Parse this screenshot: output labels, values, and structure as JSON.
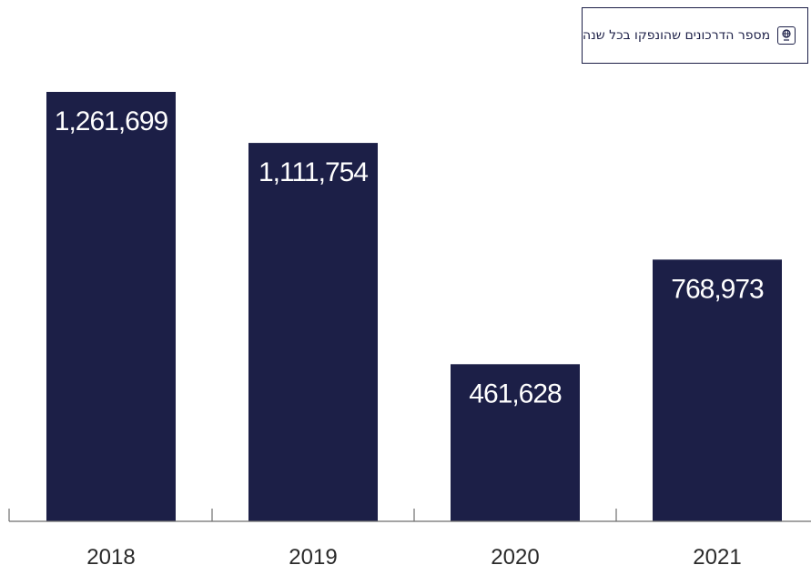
{
  "legend": {
    "label": "מספר הדרכונים שהונפקו בכל שנה",
    "icon": "passport-icon"
  },
  "colors": {
    "bar": "#1c1f47",
    "axis": "#6d6d6d",
    "bar_label": "#ffffff",
    "tick": "#2a2a2a"
  },
  "chart_data": {
    "type": "bar",
    "categories": [
      "2018",
      "2019",
      "2020",
      "2021"
    ],
    "values": [
      1261699,
      1111754,
      461628,
      768973
    ],
    "value_labels": [
      "1,261,699",
      "1,111,754",
      "461,628",
      "768,973"
    ],
    "title": "",
    "xlabel": "",
    "ylabel": "",
    "ylim": [
      0,
      1261699
    ],
    "grid": false,
    "legend_position": "top-right"
  }
}
